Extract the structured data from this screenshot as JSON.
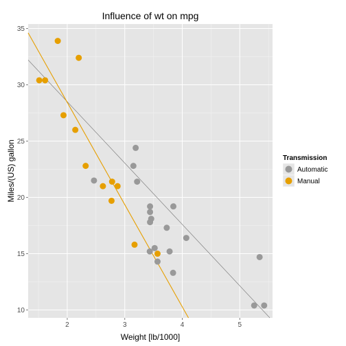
{
  "chart_data": {
    "type": "scatter",
    "title": "Influence of wt on mpg",
    "xlabel": "Weight [lb/1000]",
    "ylabel": "Miles/(US) gallon",
    "xlim": [
      1.32,
      5.57
    ],
    "ylim": [
      9.3,
      35.4
    ],
    "xticks": [
      2,
      3,
      4,
      5
    ],
    "yticks": [
      10,
      15,
      20,
      25,
      30,
      35
    ],
    "grid": true,
    "legend_position": "right",
    "legend_title": "Transmission",
    "series": [
      {
        "name": "Automatic",
        "color": "#999999",
        "points": [
          [
            3.215,
            21.4
          ],
          [
            3.44,
            18.7
          ],
          [
            3.46,
            18.1
          ],
          [
            3.57,
            14.3
          ],
          [
            3.19,
            24.4
          ],
          [
            3.15,
            22.8
          ],
          [
            3.44,
            19.2
          ],
          [
            3.44,
            17.8
          ],
          [
            4.07,
            16.4
          ],
          [
            3.73,
            17.3
          ],
          [
            3.78,
            15.2
          ],
          [
            5.25,
            10.4
          ],
          [
            5.424,
            10.4
          ],
          [
            5.345,
            14.7
          ],
          [
            2.465,
            21.5
          ],
          [
            3.52,
            15.5
          ],
          [
            3.435,
            15.2
          ],
          [
            3.84,
            13.3
          ],
          [
            3.845,
            19.2
          ]
        ],
        "fit": {
          "intercept": 39.4,
          "slope": -5.45
        }
      },
      {
        "name": "Manual",
        "color": "#E69F00",
        "points": [
          [
            2.62,
            21.0
          ],
          [
            2.875,
            21.0
          ],
          [
            2.32,
            22.8
          ],
          [
            2.2,
            32.4
          ],
          [
            1.615,
            30.4
          ],
          [
            1.835,
            33.9
          ],
          [
            1.935,
            27.3
          ],
          [
            2.14,
            26.0
          ],
          [
            1.513,
            30.4
          ],
          [
            3.17,
            15.8
          ],
          [
            2.77,
            19.7
          ],
          [
            3.57,
            15.0
          ],
          [
            2.78,
            21.4
          ]
        ],
        "fit": {
          "intercept": 46.6,
          "slope": -9.08
        }
      }
    ]
  }
}
